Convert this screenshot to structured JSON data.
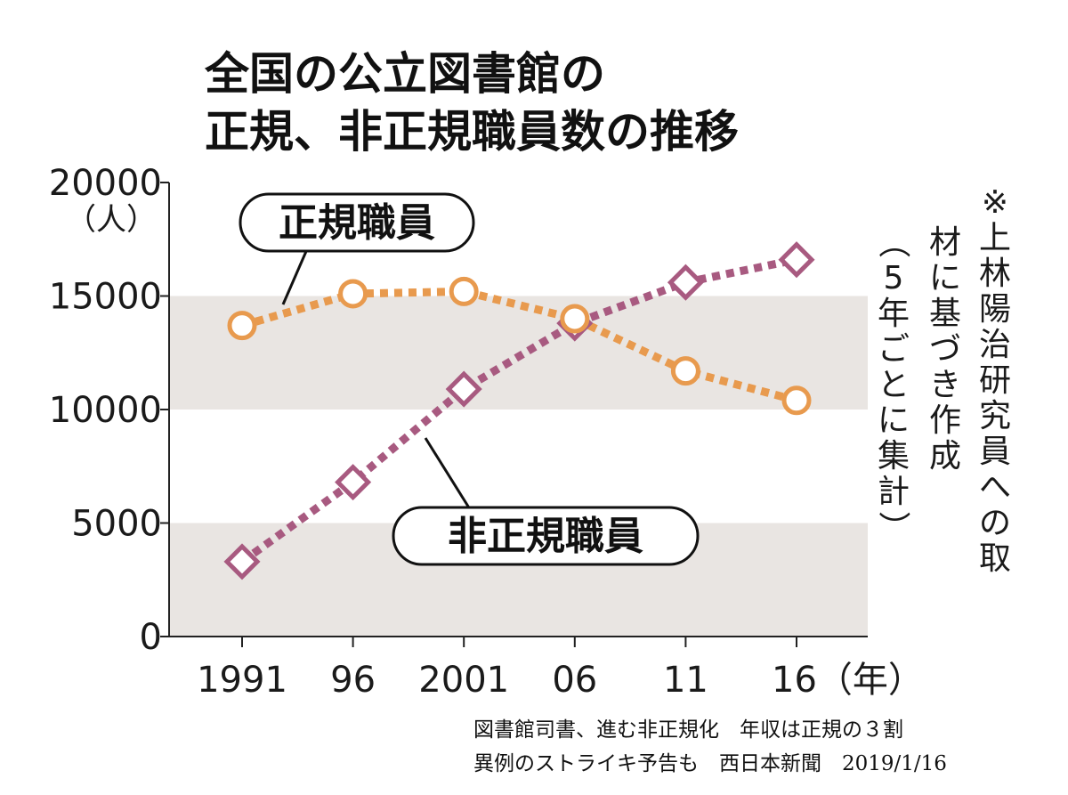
{
  "chart_data": {
    "type": "line",
    "title_lines": [
      "全国の公立図書館の",
      "正規、非正規職員数の推移"
    ],
    "y_unit": "（人）",
    "ylim": [
      0,
      20000
    ],
    "y_ticks": [
      0,
      5000,
      10000,
      15000,
      20000
    ],
    "y_tick_labels": [
      "0",
      "5000",
      "10000",
      "15000",
      "20000"
    ],
    "x": [
      1991,
      1996,
      2001,
      2006,
      2011,
      2016
    ],
    "x_tick_labels": [
      "1991",
      "96",
      "2001",
      "06",
      "11",
      "16（年）"
    ],
    "grid_bands": [
      [
        0,
        5000
      ],
      [
        10000,
        15000
      ]
    ],
    "series": [
      {
        "name": "正規職員",
        "marker": "circle",
        "color": "#e89a4e",
        "values": [
          13700,
          15100,
          15200,
          14000,
          11700,
          10400
        ]
      },
      {
        "name": "非正規職員",
        "marker": "diamond",
        "color": "#a85a80",
        "values": [
          3300,
          6800,
          10900,
          13800,
          15600,
          16600
        ]
      }
    ],
    "note": "※上林陽治研究員への取材に基づき作成（5年ごとに集計）",
    "note_columns": [
      "※上林陽治研究員への取",
      "材に基づき作成",
      "（5年ごとに集計）"
    ]
  },
  "source": {
    "line1": "図書館司書、進む非正規化　年収は正規の３割",
    "line2": "異例のストライキ予告も　西日本新聞　2019/1/16"
  },
  "colors": {
    "band": "#e9e5e2",
    "axis": "#222222",
    "text": "#111111"
  }
}
